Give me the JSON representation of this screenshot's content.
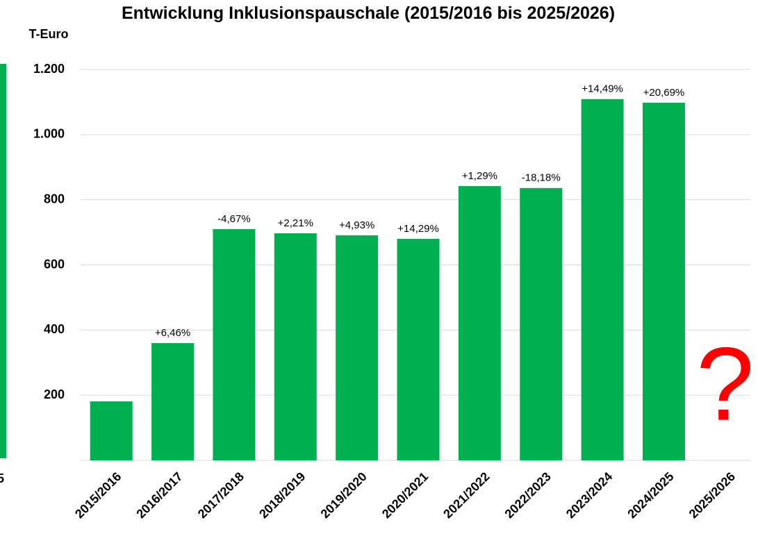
{
  "chart_data": {
    "type": "bar",
    "title": "Entwicklung Inklusionspauschale (2015/2016 bis 2025/2026)",
    "y_axis_label": "T-Euro",
    "categories": [
      "2015/2016",
      "2016/2017",
      "2017/2018",
      "2018/2019",
      "2019/2020",
      "2020/2021",
      "2021/2022",
      "2022/2023",
      "2023/2024",
      "2024/2025",
      "2025/2026"
    ],
    "values": [
      181,
      360,
      710,
      697,
      691,
      680,
      842,
      836,
      1109,
      1098,
      null
    ],
    "change_labels": [
      null,
      "+6,46%",
      "-4,67%",
      "+2,21%",
      "+4,93%",
      "+14,29%",
      "+1,29%",
      "-18,18%",
      "+14,49%",
      "+20,69%",
      null
    ],
    "missing_marker": "?",
    "color": "#00b050",
    "marker_color": "#ff0000",
    "ylim": [
      0,
      1200
    ],
    "yticks": [
      200,
      400,
      600,
      800,
      {
        "value": 1000,
        "label": "1.000"
      },
      {
        "value": 1200,
        "label": "1.200"
      }
    ],
    "grid": true,
    "left_fragment_label": "5"
  }
}
